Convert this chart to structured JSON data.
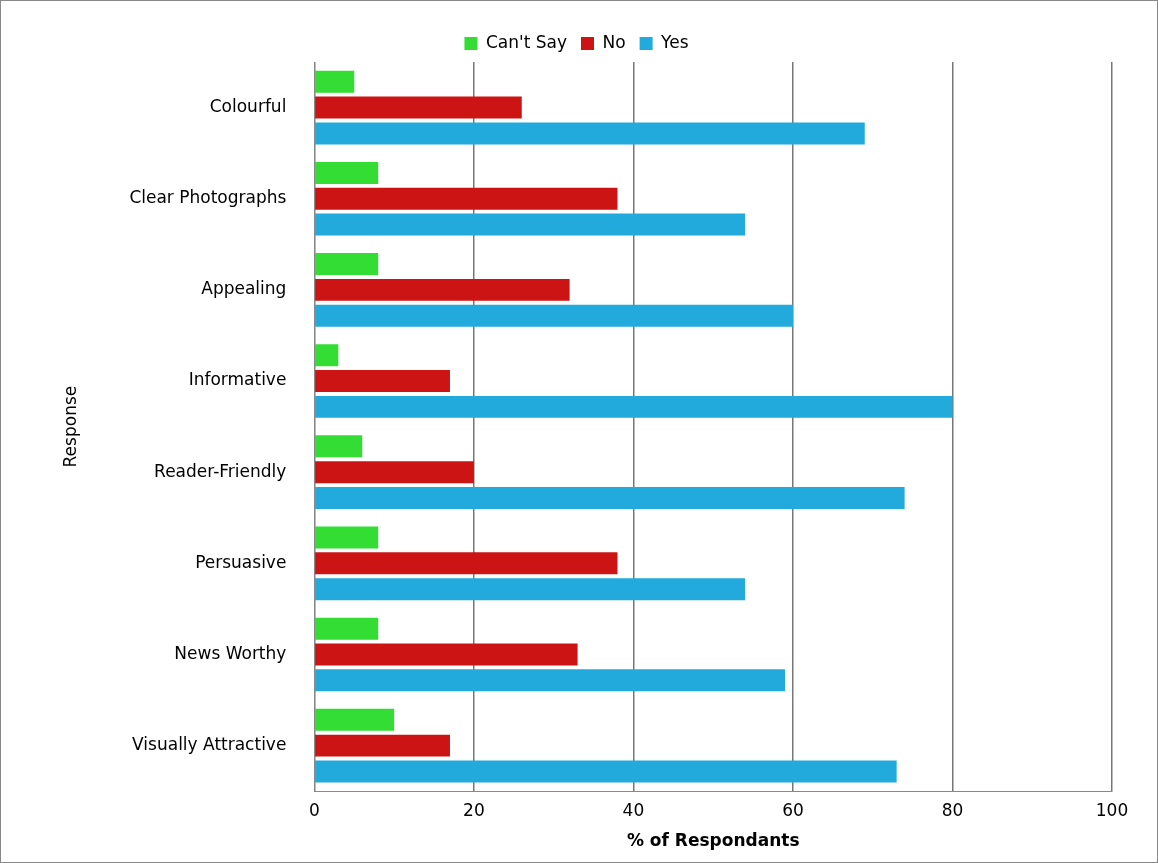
{
  "chart_data": {
    "type": "bar",
    "orientation": "horizontal",
    "xlabel": "% of Respondants",
    "ylabel": "Response",
    "categories": [
      "Colourful",
      "Clear Photographs",
      "Appealing",
      "Informative",
      "Reader-Friendly",
      "Persuasive",
      "News Worthy",
      "Visually Attractive"
    ],
    "series": [
      {
        "name": "Can't Say",
        "color": "#33dd33",
        "values": [
          5,
          8,
          8,
          3,
          6,
          8,
          8,
          10
        ]
      },
      {
        "name": "No",
        "color": "#cc1414",
        "values": [
          26,
          38,
          32,
          17,
          20,
          38,
          33,
          17
        ]
      },
      {
        "name": "Yes",
        "color": "#22aadd",
        "values": [
          69,
          54,
          60,
          80,
          74,
          54,
          59,
          73
        ]
      }
    ],
    "xlim": [
      0,
      100
    ],
    "xticks": [
      0,
      20,
      40,
      60,
      80,
      100
    ],
    "grid": "x",
    "legend": "top"
  }
}
